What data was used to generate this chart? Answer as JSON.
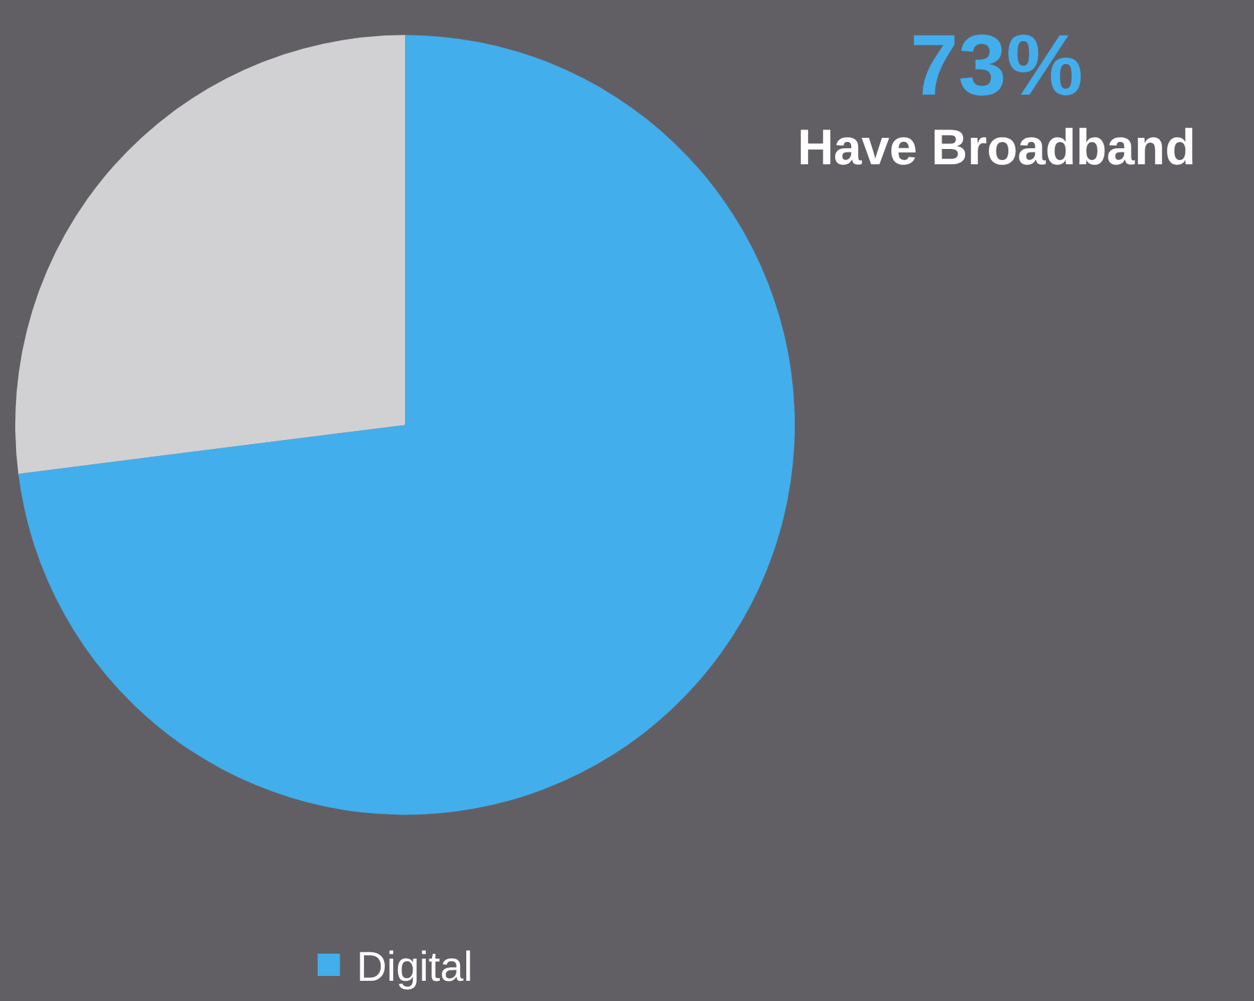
{
  "chart_data": {
    "type": "pie",
    "categories": [
      "Digital",
      null
    ],
    "values": [
      73,
      27
    ],
    "colors": [
      "#42aeec",
      "#d1d1d3"
    ],
    "annotations": [
      "73%",
      "Have Broadband"
    ],
    "legend": "bottom"
  }
}
